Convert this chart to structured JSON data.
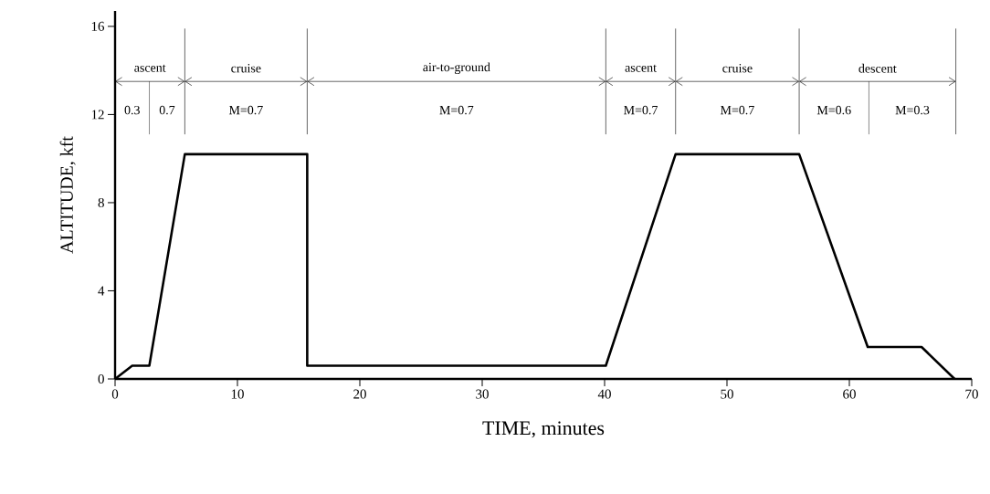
{
  "chart_data": {
    "type": "line",
    "xlabel": "TIME, minutes",
    "ylabel": "ALTITUDE, kft",
    "xlim": [
      0,
      70
    ],
    "ylim": [
      0,
      16.7
    ],
    "xticks": [
      0,
      10,
      20,
      30,
      40,
      50,
      60,
      70
    ],
    "yticks": [
      0,
      4,
      8,
      12,
      16
    ],
    "marker": "none",
    "line_style": "solid",
    "legend": false,
    "series": [
      {
        "color": "#000000",
        "x": [
          0,
          1.4,
          2.8,
          5.7,
          15.7,
          15.7,
          40.1,
          45.8,
          55.9,
          61.5,
          65.9,
          68.6
        ],
        "values": [
          0,
          0.6,
          0.6,
          10.2,
          10.2,
          0.6,
          0.6,
          10.2,
          10.2,
          1.45,
          1.45,
          0
        ]
      }
    ],
    "ref_lines": [
      {
        "axis": "x",
        "value": 2.8,
        "color": "#404040"
      },
      {
        "axis": "x",
        "value": 5.7
      },
      {
        "axis": "x",
        "value": 15.7
      },
      {
        "axis": "x",
        "value": 40.1
      },
      {
        "axis": "x",
        "value": 45.8
      },
      {
        "axis": "x",
        "value": 55.9
      },
      {
        "axis": "x",
        "value": 61.6,
        "color": "#404040"
      },
      {
        "axis": "x",
        "value": 68.7
      }
    ],
    "annotations": [
      "ascent",
      "cruise",
      "air-to-ground",
      "ascent",
      "cruise",
      "descent",
      "0.3",
      "0.7",
      "M=0.7",
      "M=0.7",
      "M=0.7",
      "M=0.7",
      "M=0.6",
      "M=0.3"
    ]
  }
}
